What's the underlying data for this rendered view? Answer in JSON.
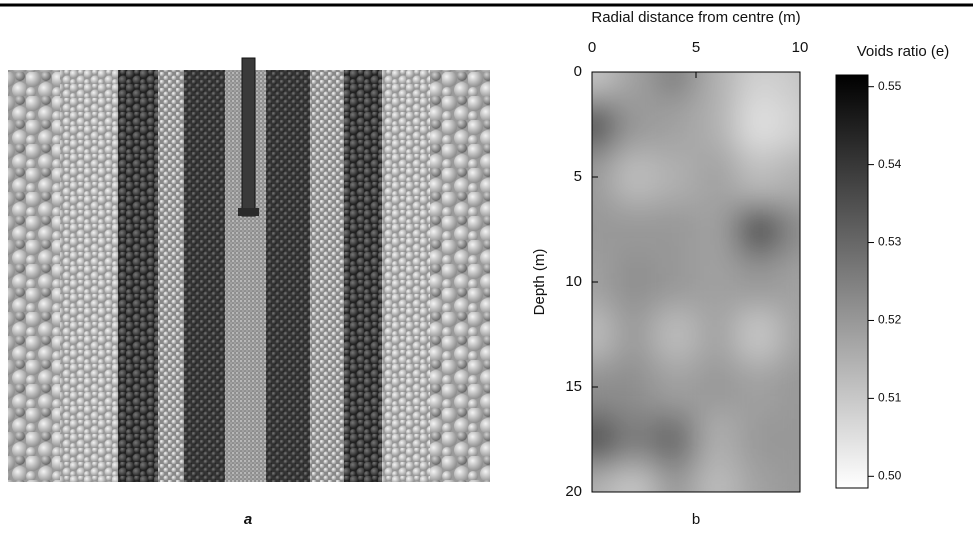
{
  "panel_a": {
    "label": "a"
  },
  "chart_data": {
    "type": "contour",
    "label": "b",
    "xlabel": "Radial distance from centre (m)",
    "ylabel": "Depth (m)",
    "xlim": [
      0,
      10
    ],
    "ylim": [
      20,
      0
    ],
    "xticks": [
      0,
      5,
      10
    ],
    "yticks": [
      0,
      5,
      10,
      15,
      20
    ],
    "x": [
      0,
      2,
      4,
      6,
      8,
      10
    ],
    "y": [
      0,
      2.5,
      5,
      7.5,
      10,
      12.5,
      15,
      17.5,
      20
    ],
    "z": [
      [
        0.51,
        0.518,
        0.525,
        0.515,
        0.508,
        0.51
      ],
      [
        0.535,
        0.52,
        0.518,
        0.515,
        0.505,
        0.508
      ],
      [
        0.52,
        0.512,
        0.515,
        0.518,
        0.512,
        0.515
      ],
      [
        0.52,
        0.52,
        0.52,
        0.518,
        0.535,
        0.522
      ],
      [
        0.518,
        0.522,
        0.52,
        0.518,
        0.52,
        0.518
      ],
      [
        0.512,
        0.52,
        0.512,
        0.518,
        0.51,
        0.518
      ],
      [
        0.522,
        0.522,
        0.518,
        0.52,
        0.518,
        0.52
      ],
      [
        0.535,
        0.525,
        0.53,
        0.515,
        0.52,
        0.52
      ],
      [
        0.515,
        0.51,
        0.52,
        0.512,
        0.518,
        0.52
      ]
    ],
    "colorbar": {
      "title": "Voids ratio (e)",
      "clim": [
        0.4985,
        0.5515
      ],
      "cmap": [
        "#ffffff",
        "#000000"
      ],
      "ticks": [
        {
          "value": 0.5,
          "label": "0.50"
        },
        0.51,
        0.52,
        0.53,
        0.54,
        0.55
      ]
    }
  }
}
